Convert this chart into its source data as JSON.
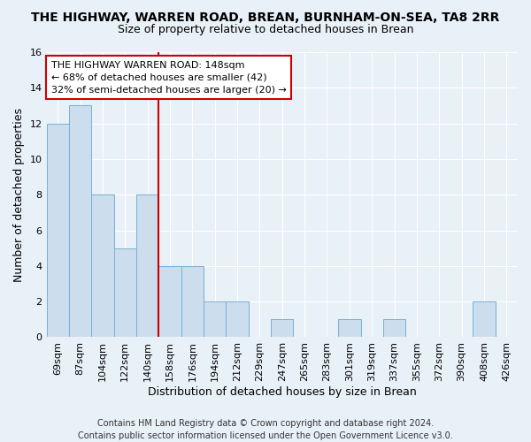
{
  "title": "THE HIGHWAY, WARREN ROAD, BREAN, BURNHAM-ON-SEA, TA8 2RR",
  "subtitle": "Size of property relative to detached houses in Brean",
  "xlabel": "Distribution of detached houses by size in Brean",
  "ylabel": "Number of detached properties",
  "categories": [
    "69sqm",
    "87sqm",
    "104sqm",
    "122sqm",
    "140sqm",
    "158sqm",
    "176sqm",
    "194sqm",
    "212sqm",
    "229sqm",
    "247sqm",
    "265sqm",
    "283sqm",
    "301sqm",
    "319sqm",
    "337sqm",
    "355sqm",
    "372sqm",
    "390sqm",
    "408sqm",
    "426sqm"
  ],
  "values": [
    12,
    13,
    8,
    5,
    8,
    4,
    4,
    2,
    2,
    0,
    1,
    0,
    0,
    1,
    0,
    1,
    0,
    0,
    0,
    2,
    0
  ],
  "bar_color": "#ccdded",
  "bar_edge_color": "#7bafd4",
  "ylim": [
    0,
    16
  ],
  "yticks": [
    0,
    2,
    4,
    6,
    8,
    10,
    12,
    14,
    16
  ],
  "vline_index": 4,
  "vline_color": "#cc0000",
  "annotation_text": "THE HIGHWAY WARREN ROAD: 148sqm\n← 68% of detached houses are smaller (42)\n32% of semi-detached houses are larger (20) →",
  "footer": "Contains HM Land Registry data © Crown copyright and database right 2024.\nContains public sector information licensed under the Open Government Licence v3.0.",
  "bg_color": "#e8f0f8",
  "grid_color": "#ffffff",
  "title_fontsize": 10,
  "subtitle_fontsize": 9,
  "label_fontsize": 9,
  "tick_fontsize": 8,
  "annotation_fontsize": 8,
  "footer_fontsize": 7
}
